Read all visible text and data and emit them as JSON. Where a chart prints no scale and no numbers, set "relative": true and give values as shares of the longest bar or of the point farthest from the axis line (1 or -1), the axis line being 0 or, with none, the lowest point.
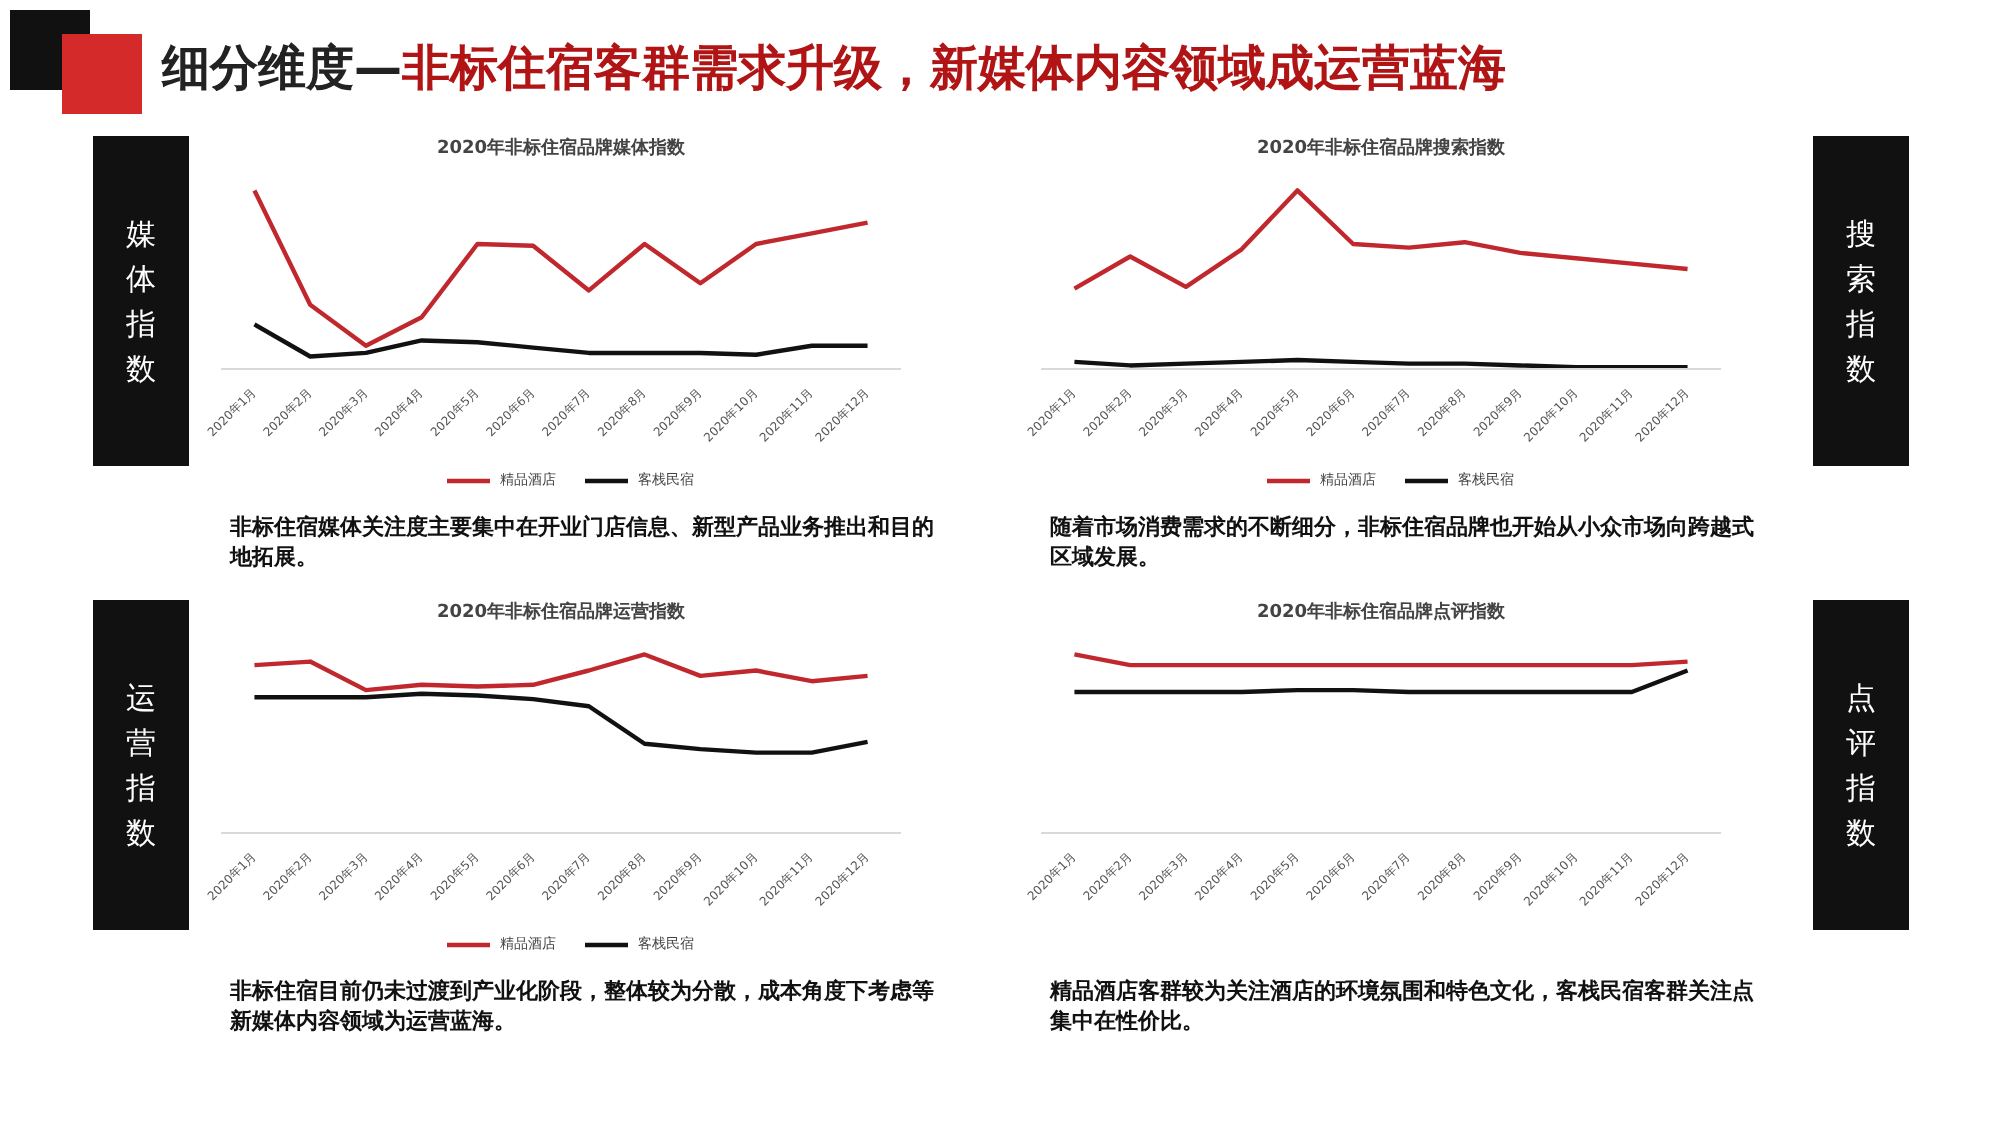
{
  "chart_data": [
    {
      "type": "line",
      "title": "2020年非标住宿品牌媒体指数",
      "relative": true,
      "legend": "bottom",
      "grid": false,
      "line_style": "solid",
      "categories": [
        "2020年1月",
        "2020年2月",
        "2020年3月",
        "2020年4月",
        "2020年5月",
        "2020年6月",
        "2020年7月",
        "2020年8月",
        "2020年9月",
        "2020年10月",
        "2020年11月",
        "2020年12月"
      ],
      "series": [
        {
          "name": "精品酒店",
          "color": "#c0282d",
          "values": [
            1,
            0.36,
            0.13,
            0.29,
            0.7,
            0.69,
            0.44,
            0.7,
            0.48,
            0.7,
            0.76,
            0.82
          ]
        },
        {
          "name": "客栈民宿",
          "color": "#111111",
          "values": [
            0.25,
            0.07,
            0.09,
            0.16,
            0.15,
            0.12,
            0.09,
            0.09,
            0.09,
            0.08,
            0.13,
            0.13
          ]
        }
      ],
      "annotations": [
        "媒体指数",
        "非标住宿媒体关注度主要集中在开业门店信息、新型产品业务推出和目的地拓展。",
        "细分维度—非标住宿客群需求升级，新媒体内容领域成运营蓝海"
      ]
    },
    {
      "type": "line",
      "title": "2020年非标住宿品牌搜索指数",
      "relative": true,
      "legend": "bottom",
      "grid": false,
      "line_style": "solid",
      "categories": [
        "2020年1月",
        "2020年2月",
        "2020年3月",
        "2020年4月",
        "2020年5月",
        "2020年6月",
        "2020年7月",
        "2020年8月",
        "2020年9月",
        "2020年10月",
        "2020年11月",
        "2020年12月"
      ],
      "series": [
        {
          "name": "精品酒店",
          "color": "#c0282d",
          "values": [
            0.45,
            0.63,
            0.46,
            0.67,
            1,
            0.7,
            0.68,
            0.71,
            0.65,
            0.62,
            0.59,
            0.56
          ]
        },
        {
          "name": "客栈民宿",
          "color": "#111111",
          "values": [
            0.04,
            0.02,
            0.03,
            0.04,
            0.05,
            0.04,
            0.03,
            0.03,
            0.02,
            0.01,
            0.01,
            0.01
          ]
        }
      ],
      "annotations": [
        "搜索指数",
        "随着市场消费需求的不断细分，非标住宿品牌也开始从小众市场向跨越式区域发展。"
      ]
    },
    {
      "type": "line",
      "title": "2020年非标住宿品牌运营指数",
      "relative": true,
      "legend": "bottom",
      "grid": false,
      "line_style": "solid",
      "categories": [
        "2020年1月",
        "2020年2月",
        "2020年3月",
        "2020年4月",
        "2020年5月",
        "2020年6月",
        "2020年7月",
        "2020年8月",
        "2020年9月",
        "2020年10月",
        "2020年11月",
        "2020年12月"
      ],
      "series": [
        {
          "name": "精品酒店",
          "color": "#c0282d",
          "values": [
            0.94,
            0.96,
            0.8,
            0.83,
            0.82,
            0.83,
            0.91,
            1,
            0.88,
            0.91,
            0.85,
            0.88
          ]
        },
        {
          "name": "客栈民宿",
          "color": "#111111",
          "values": [
            0.76,
            0.76,
            0.76,
            0.78,
            0.77,
            0.75,
            0.71,
            0.5,
            0.47,
            0.45,
            0.45,
            0.51
          ]
        }
      ],
      "annotations": [
        "运营指数",
        "非标住宿目前仍未过渡到产业化阶段，整体较为分散，成本角度下考虑等新媒体内容领域为运营蓝海。"
      ]
    },
    {
      "type": "line",
      "title": "2020年非标住宿品牌点评指数",
      "relative": true,
      "grid": false,
      "line_style": "solid",
      "categories": [
        "2020年1月",
        "2020年2月",
        "2020年3月",
        "2020年4月",
        "2020年5月",
        "2020年6月",
        "2020年7月",
        "2020年8月",
        "2020年9月",
        "2020年10月",
        "2020年11月",
        "2020年12月"
      ],
      "series": [
        {
          "color": "#c0282d",
          "values": [
            1,
            0.94,
            0.94,
            0.94,
            0.94,
            0.94,
            0.94,
            0.94,
            0.94,
            0.94,
            0.94,
            0.96
          ]
        },
        {
          "color": "#111111",
          "values": [
            0.79,
            0.79,
            0.79,
            0.79,
            0.8,
            0.8,
            0.79,
            0.79,
            0.79,
            0.79,
            0.79,
            0.91
          ]
        }
      ],
      "annotations": [
        "点评指数",
        "精品酒店客群较为关注酒店的环境氛围和特色文化，客栈民宿客群关注点集中在性价比。"
      ]
    }
  ]
}
